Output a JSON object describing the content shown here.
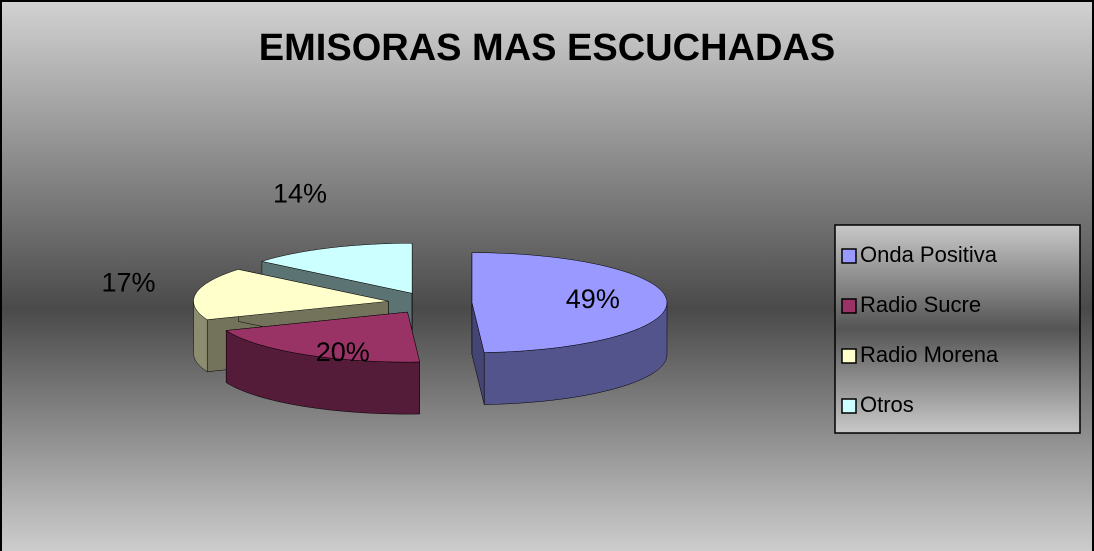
{
  "chart_data": {
    "type": "pie",
    "title": "EMISORAS MAS ESCUCHADAS",
    "categories": [
      "Onda Positiva",
      "Radio Sucre",
      "Radio Morena",
      "Otros"
    ],
    "values": [
      49,
      20,
      17,
      14
    ],
    "value_labels": [
      "49%",
      "20%",
      "17%",
      "14%"
    ],
    "colors": [
      "#9999ff",
      "#993366",
      "#ffffcc",
      "#ccffff"
    ],
    "legend": "right"
  }
}
